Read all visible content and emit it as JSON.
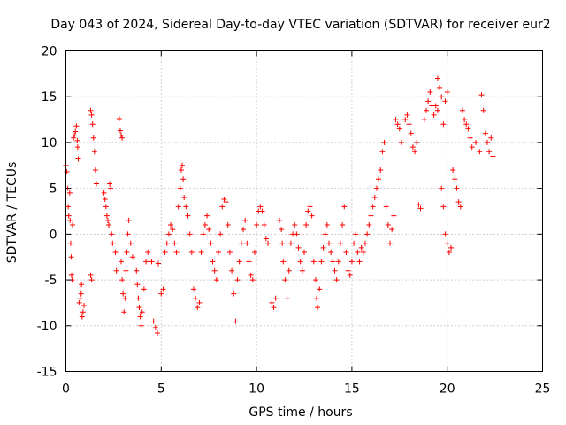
{
  "chart_data": {
    "type": "scatter",
    "title": "Day 043 of 2024, Sidereal Day-to-day VTEC variation (SDTVAR) for receiver eur2",
    "xlabel": "GPS time / hours",
    "ylabel": "SDTVAR / TECUs",
    "xlim": [
      0,
      25
    ],
    "ylim": [
      -15,
      20
    ],
    "xticks": [
      0,
      5,
      10,
      15,
      20,
      25
    ],
    "yticks": [
      -15,
      -10,
      -5,
      0,
      5,
      10,
      15,
      20
    ],
    "xtick_labels": [
      "0",
      "5",
      "10",
      "15",
      "20",
      "25"
    ],
    "ytick_labels": [
      "-15",
      "-10",
      "-5",
      "0",
      "5",
      "10",
      "15",
      "20"
    ],
    "grid": true,
    "marker": "+",
    "series": [
      {
        "name": "SDTVAR",
        "color": "#ff0000",
        "points": [
          [
            0.0,
            7.5
          ],
          [
            0.05,
            6.8
          ],
          [
            0.1,
            5.0
          ],
          [
            0.12,
            3.0
          ],
          [
            0.15,
            2.0
          ],
          [
            0.2,
            4.5
          ],
          [
            0.22,
            1.5
          ],
          [
            0.25,
            -1.0
          ],
          [
            0.28,
            -2.5
          ],
          [
            0.3,
            -4.5
          ],
          [
            0.32,
            -5.0
          ],
          [
            0.35,
            1.0
          ],
          [
            0.4,
            10.5
          ],
          [
            0.45,
            10.8
          ],
          [
            0.5,
            11.2
          ],
          [
            0.55,
            11.8
          ],
          [
            0.6,
            10.2
          ],
          [
            0.62,
            9.5
          ],
          [
            0.65,
            8.2
          ],
          [
            0.7,
            -7.5
          ],
          [
            0.75,
            -7.0
          ],
          [
            0.8,
            -6.5
          ],
          [
            0.82,
            -5.5
          ],
          [
            0.85,
            -9.0
          ],
          [
            0.9,
            -8.5
          ],
          [
            0.95,
            -7.8
          ],
          [
            1.3,
            13.5
          ],
          [
            1.35,
            13.0
          ],
          [
            1.4,
            12.0
          ],
          [
            1.45,
            10.5
          ],
          [
            1.5,
            9.0
          ],
          [
            1.55,
            7.0
          ],
          [
            1.6,
            5.5
          ],
          [
            1.3,
            -4.5
          ],
          [
            1.35,
            -5.0
          ],
          [
            2.0,
            4.5
          ],
          [
            2.05,
            3.8
          ],
          [
            2.1,
            3.0
          ],
          [
            2.15,
            2.0
          ],
          [
            2.2,
            1.5
          ],
          [
            2.25,
            1.0
          ],
          [
            2.3,
            5.5
          ],
          [
            2.35,
            5.0
          ],
          [
            2.4,
            0.0
          ],
          [
            2.45,
            -1.0
          ],
          [
            2.6,
            -2.0
          ],
          [
            2.65,
            -4.0
          ],
          [
            2.8,
            12.6
          ],
          [
            2.85,
            11.3
          ],
          [
            2.9,
            10.8
          ],
          [
            2.95,
            10.5
          ],
          [
            2.9,
            -3.0
          ],
          [
            2.95,
            -5.0
          ],
          [
            3.0,
            -6.5
          ],
          [
            3.05,
            -8.5
          ],
          [
            3.1,
            -7.0
          ],
          [
            3.15,
            -4.0
          ],
          [
            3.2,
            -2.0
          ],
          [
            3.25,
            0.0
          ],
          [
            3.3,
            1.5
          ],
          [
            3.4,
            -1.0
          ],
          [
            3.5,
            -2.5
          ],
          [
            3.7,
            -4.0
          ],
          [
            3.75,
            -5.5
          ],
          [
            3.8,
            -7.0
          ],
          [
            3.85,
            -8.0
          ],
          [
            3.9,
            -9.0
          ],
          [
            3.95,
            -10.0
          ],
          [
            4.0,
            -8.5
          ],
          [
            4.1,
            -6.0
          ],
          [
            4.2,
            -3.0
          ],
          [
            4.3,
            -2.0
          ],
          [
            4.5,
            -3.0
          ],
          [
            4.6,
            -9.5
          ],
          [
            4.7,
            -10.2
          ],
          [
            4.8,
            -10.8
          ],
          [
            4.85,
            -3.2
          ],
          [
            5.0,
            -6.5
          ],
          [
            5.1,
            -6.0
          ],
          [
            5.2,
            -2.0
          ],
          [
            5.3,
            -1.0
          ],
          [
            5.4,
            0.0
          ],
          [
            5.5,
            1.0
          ],
          [
            5.6,
            0.5
          ],
          [
            5.7,
            -1.0
          ],
          [
            5.8,
            -2.0
          ],
          [
            5.9,
            3.0
          ],
          [
            6.0,
            5.0
          ],
          [
            6.05,
            7.0
          ],
          [
            6.1,
            7.5
          ],
          [
            6.15,
            6.0
          ],
          [
            6.2,
            4.0
          ],
          [
            6.3,
            3.0
          ],
          [
            6.4,
            2.0
          ],
          [
            6.5,
            0.0
          ],
          [
            6.6,
            -2.0
          ],
          [
            6.7,
            -6.0
          ],
          [
            6.8,
            -7.0
          ],
          [
            6.9,
            -8.0
          ],
          [
            7.0,
            -7.5
          ],
          [
            7.1,
            -2.0
          ],
          [
            7.2,
            0.0
          ],
          [
            7.3,
            1.0
          ],
          [
            7.4,
            2.0
          ],
          [
            7.5,
            0.5
          ],
          [
            7.6,
            -1.0
          ],
          [
            7.7,
            -3.0
          ],
          [
            7.8,
            -4.0
          ],
          [
            7.9,
            -5.0
          ],
          [
            8.0,
            -2.0
          ],
          [
            8.1,
            0.0
          ],
          [
            8.2,
            3.0
          ],
          [
            8.3,
            3.8
          ],
          [
            8.4,
            3.5
          ],
          [
            8.5,
            1.0
          ],
          [
            8.6,
            -2.0
          ],
          [
            8.7,
            -4.0
          ],
          [
            8.8,
            -6.5
          ],
          [
            8.9,
            -9.5
          ],
          [
            9.0,
            -5.0
          ],
          [
            9.1,
            -3.0
          ],
          [
            9.2,
            -1.0
          ],
          [
            9.3,
            0.5
          ],
          [
            9.4,
            1.5
          ],
          [
            9.5,
            -1.0
          ],
          [
            9.6,
            -3.0
          ],
          [
            9.7,
            -4.5
          ],
          [
            9.8,
            -5.0
          ],
          [
            9.9,
            -2.0
          ],
          [
            10.0,
            1.0
          ],
          [
            10.1,
            2.5
          ],
          [
            10.2,
            3.0
          ],
          [
            10.3,
            2.5
          ],
          [
            10.4,
            1.0
          ],
          [
            10.5,
            -0.5
          ],
          [
            10.6,
            -1.0
          ],
          [
            10.8,
            -7.5
          ],
          [
            10.9,
            -8.0
          ],
          [
            11.0,
            -7.0
          ],
          [
            11.2,
            1.5
          ],
          [
            11.3,
            0.5
          ],
          [
            11.35,
            -1.0
          ],
          [
            11.4,
            -3.0
          ],
          [
            11.5,
            -5.0
          ],
          [
            11.6,
            -7.0
          ],
          [
            11.7,
            -4.0
          ],
          [
            11.8,
            -1.0
          ],
          [
            11.9,
            0.0
          ],
          [
            12.0,
            1.0
          ],
          [
            12.1,
            0.0
          ],
          [
            12.2,
            -1.5
          ],
          [
            12.3,
            -3.0
          ],
          [
            12.4,
            -4.0
          ],
          [
            12.5,
            -2.0
          ],
          [
            12.6,
            1.0
          ],
          [
            12.7,
            2.5
          ],
          [
            12.8,
            3.0
          ],
          [
            12.9,
            2.0
          ],
          [
            13.0,
            -3.0
          ],
          [
            13.1,
            -5.0
          ],
          [
            13.15,
            -7.0
          ],
          [
            13.2,
            -8.0
          ],
          [
            13.3,
            -6.0
          ],
          [
            13.4,
            -3.0
          ],
          [
            13.5,
            -1.5
          ],
          [
            13.6,
            0.0
          ],
          [
            13.7,
            1.0
          ],
          [
            13.8,
            -1.0
          ],
          [
            13.9,
            -2.0
          ],
          [
            14.0,
            -3.0
          ],
          [
            14.1,
            -4.0
          ],
          [
            14.2,
            -5.0
          ],
          [
            14.3,
            -3.0
          ],
          [
            14.4,
            -1.0
          ],
          [
            14.5,
            1.0
          ],
          [
            14.6,
            3.0
          ],
          [
            14.7,
            -2.0
          ],
          [
            14.8,
            -4.0
          ],
          [
            14.9,
            -4.5
          ],
          [
            15.0,
            -3.0
          ],
          [
            15.1,
            -1.0
          ],
          [
            15.2,
            0.0
          ],
          [
            15.3,
            -2.0
          ],
          [
            15.4,
            -3.0
          ],
          [
            15.5,
            -1.5
          ],
          [
            15.6,
            -2.0
          ],
          [
            15.7,
            -1.0
          ],
          [
            15.8,
            0.0
          ],
          [
            15.9,
            1.0
          ],
          [
            16.0,
            2.0
          ],
          [
            16.1,
            3.0
          ],
          [
            16.2,
            4.0
          ],
          [
            16.3,
            5.0
          ],
          [
            16.4,
            6.0
          ],
          [
            16.5,
            7.0
          ],
          [
            16.6,
            9.0
          ],
          [
            16.7,
            10.0
          ],
          [
            16.8,
            3.0
          ],
          [
            16.9,
            1.0
          ],
          [
            17.0,
            -1.0
          ],
          [
            17.1,
            0.5
          ],
          [
            17.2,
            2.0
          ],
          [
            17.3,
            12.5
          ],
          [
            17.4,
            12.0
          ],
          [
            17.5,
            11.5
          ],
          [
            17.6,
            10.0
          ],
          [
            17.8,
            12.5
          ],
          [
            17.9,
            13.0
          ],
          [
            18.0,
            12.0
          ],
          [
            18.1,
            11.0
          ],
          [
            18.2,
            9.5
          ],
          [
            18.3,
            9.0
          ],
          [
            18.4,
            10.0
          ],
          [
            18.5,
            3.2
          ],
          [
            18.6,
            2.8
          ],
          [
            18.8,
            12.5
          ],
          [
            18.9,
            13.5
          ],
          [
            19.0,
            14.5
          ],
          [
            19.1,
            15.5
          ],
          [
            19.2,
            14.0
          ],
          [
            19.3,
            13.0
          ],
          [
            19.4,
            14.0
          ],
          [
            19.5,
            13.5
          ],
          [
            19.5,
            17.0
          ],
          [
            19.6,
            16.0
          ],
          [
            19.7,
            15.0
          ],
          [
            19.8,
            12.0
          ],
          [
            19.9,
            14.5
          ],
          [
            20.0,
            15.5
          ],
          [
            19.7,
            5.0
          ],
          [
            19.8,
            3.0
          ],
          [
            19.9,
            0.0
          ],
          [
            20.0,
            -1.0
          ],
          [
            20.1,
            -2.0
          ],
          [
            20.2,
            -1.5
          ],
          [
            20.3,
            7.0
          ],
          [
            20.4,
            6.0
          ],
          [
            20.5,
            5.0
          ],
          [
            20.6,
            3.5
          ],
          [
            20.7,
            3.0
          ],
          [
            20.8,
            13.5
          ],
          [
            20.9,
            12.5
          ],
          [
            21.0,
            12.0
          ],
          [
            21.1,
            11.5
          ],
          [
            21.2,
            10.5
          ],
          [
            21.3,
            9.5
          ],
          [
            21.5,
            10.0
          ],
          [
            21.7,
            9.0
          ],
          [
            21.8,
            15.2
          ],
          [
            21.9,
            13.5
          ],
          [
            22.0,
            11.0
          ],
          [
            22.1,
            10.0
          ],
          [
            22.2,
            9.0
          ],
          [
            22.3,
            10.5
          ],
          [
            22.4,
            8.5
          ]
        ]
      }
    ]
  }
}
